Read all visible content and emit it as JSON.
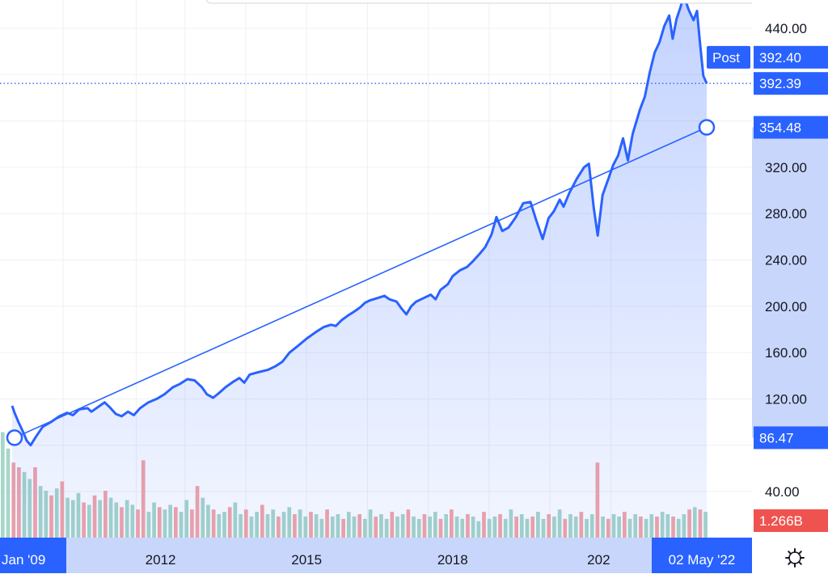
{
  "chart_data": {
    "type": "area",
    "y_axis": {
      "ticks": [
        40,
        120,
        160,
        200,
        240,
        280,
        320,
        440
      ],
      "tick_labels": [
        "40.00",
        "120.00",
        "160.00",
        "200.00",
        "240.00",
        "280.00",
        "320.00",
        "440.00"
      ],
      "ylim": [
        12,
        468
      ]
    },
    "x_axis": {
      "tick_labels": [
        "2012",
        "2015",
        "2018",
        "202"
      ],
      "start_label": "Jan '09",
      "end_label": "02 May '22"
    },
    "grid": true,
    "price_series": {
      "color": "#2962ff",
      "points": [
        [
          2008.95,
          114
        ],
        [
          2009.0,
          108
        ],
        [
          2009.08,
          100
        ],
        [
          2009.17,
          92
        ],
        [
          2009.25,
          84
        ],
        [
          2009.33,
          80
        ],
        [
          2009.45,
          88
        ],
        [
          2009.58,
          96
        ],
        [
          2009.75,
          100
        ],
        [
          2009.92,
          105
        ],
        [
          2010.08,
          108
        ],
        [
          2010.2,
          106
        ],
        [
          2010.33,
          111
        ],
        [
          2010.5,
          112
        ],
        [
          2010.58,
          109
        ],
        [
          2010.75,
          114
        ],
        [
          2010.85,
          117
        ],
        [
          2010.95,
          113
        ],
        [
          2011.08,
          107
        ],
        [
          2011.2,
          105
        ],
        [
          2011.33,
          109
        ],
        [
          2011.45,
          106
        ],
        [
          2011.58,
          112
        ],
        [
          2011.75,
          117
        ],
        [
          2011.92,
          120
        ],
        [
          2012.08,
          124
        ],
        [
          2012.25,
          130
        ],
        [
          2012.4,
          133
        ],
        [
          2012.55,
          137
        ],
        [
          2012.7,
          136
        ],
        [
          2012.85,
          130
        ],
        [
          2012.95,
          124
        ],
        [
          2013.08,
          121
        ],
        [
          2013.2,
          125
        ],
        [
          2013.33,
          130
        ],
        [
          2013.5,
          135
        ],
        [
          2013.62,
          138
        ],
        [
          2013.72,
          134
        ],
        [
          2013.83,
          141
        ],
        [
          2014.0,
          143
        ],
        [
          2014.2,
          145
        ],
        [
          2014.35,
          148
        ],
        [
          2014.5,
          152
        ],
        [
          2014.65,
          160
        ],
        [
          2014.8,
          165
        ],
        [
          2015.0,
          172
        ],
        [
          2015.2,
          178
        ],
        [
          2015.35,
          182
        ],
        [
          2015.5,
          184
        ],
        [
          2015.6,
          183
        ],
        [
          2015.72,
          188
        ],
        [
          2015.85,
          192
        ],
        [
          2016.0,
          196
        ],
        [
          2016.1,
          199
        ],
        [
          2016.2,
          203
        ],
        [
          2016.3,
          205
        ],
        [
          2016.45,
          207
        ],
        [
          2016.6,
          209
        ],
        [
          2016.7,
          206
        ],
        [
          2016.85,
          204
        ],
        [
          2016.95,
          198
        ],
        [
          2017.05,
          193
        ],
        [
          2017.15,
          200
        ],
        [
          2017.25,
          204
        ],
        [
          2017.4,
          207
        ],
        [
          2017.55,
          210
        ],
        [
          2017.65,
          206
        ],
        [
          2017.75,
          214
        ],
        [
          2017.9,
          219
        ],
        [
          2018.0,
          226
        ],
        [
          2018.15,
          231
        ],
        [
          2018.3,
          234
        ],
        [
          2018.42,
          239
        ],
        [
          2018.55,
          245
        ],
        [
          2018.67,
          251
        ],
        [
          2018.8,
          262
        ],
        [
          2018.9,
          277
        ],
        [
          2019.02,
          265
        ],
        [
          2019.15,
          268
        ],
        [
          2019.3,
          277
        ],
        [
          2019.45,
          289
        ],
        [
          2019.6,
          290
        ],
        [
          2019.72,
          274
        ],
        [
          2019.85,
          258
        ],
        [
          2019.97,
          276
        ],
        [
          2020.08,
          282
        ],
        [
          2020.2,
          292
        ],
        [
          2020.28,
          286
        ],
        [
          2020.4,
          298
        ],
        [
          2020.55,
          310
        ],
        [
          2020.7,
          320
        ],
        [
          2020.8,
          323
        ],
        [
          2020.9,
          285
        ],
        [
          2020.98,
          261
        ],
        [
          2021.08,
          296
        ],
        [
          2021.2,
          310
        ],
        [
          2021.3,
          322
        ],
        [
          2021.4,
          330
        ],
        [
          2021.5,
          345
        ],
        [
          2021.6,
          326
        ],
        [
          2021.7,
          349
        ],
        [
          2021.85,
          370
        ],
        [
          2021.95,
          381
        ],
        [
          2022.05,
          402
        ],
        [
          2022.15,
          419
        ],
        [
          2022.25,
          428
        ],
        [
          2022.35,
          442
        ],
        [
          2022.45,
          451
        ],
        [
          2022.52,
          431
        ],
        [
          2022.6,
          448
        ],
        [
          2022.68,
          458
        ],
        [
          2022.75,
          468
        ],
        [
          2022.85,
          456
        ],
        [
          2022.95,
          447
        ],
        [
          2023.02,
          455
        ],
        [
          2023.08,
          428
        ],
        [
          2023.15,
          399
        ],
        [
          2023.22,
          392.39
        ]
      ]
    },
    "trend_line": {
      "color": "#2962ff",
      "start": [
        2009.0,
        86.47
      ],
      "end": [
        2023.22,
        354.48
      ]
    },
    "price_labels": {
      "current": "392.39",
      "post_value": "392.40",
      "post_label": "Post",
      "trend_end": "354.48",
      "trend_start": "86.47",
      "volume": "1.266B"
    },
    "volume": {
      "up_color": "#a6d6c9",
      "down_color": "#f4a4a6",
      "bars": [
        [
          45,
          0
        ],
        [
          38,
          0
        ],
        [
          32,
          1
        ],
        [
          30,
          1
        ],
        [
          28,
          0
        ],
        [
          25,
          0
        ],
        [
          30,
          1
        ],
        [
          22,
          0
        ],
        [
          20,
          0
        ],
        [
          18,
          1
        ],
        [
          21,
          0
        ],
        [
          24,
          1
        ],
        [
          17,
          0
        ],
        [
          16,
          0
        ],
        [
          19,
          0
        ],
        [
          15,
          1
        ],
        [
          14,
          0
        ],
        [
          18,
          1
        ],
        [
          16,
          0
        ],
        [
          20,
          1
        ],
        [
          17,
          0
        ],
        [
          15,
          0
        ],
        [
          13,
          1
        ],
        [
          16,
          0
        ],
        [
          14,
          0
        ],
        [
          12,
          1
        ],
        [
          33,
          1
        ],
        [
          11,
          0
        ],
        [
          15,
          0
        ],
        [
          13,
          1
        ],
        [
          12,
          0
        ],
        [
          14,
          0
        ],
        [
          13,
          1
        ],
        [
          11,
          0
        ],
        [
          16,
          0
        ],
        [
          12,
          1
        ],
        [
          22,
          1
        ],
        [
          17,
          0
        ],
        [
          14,
          0
        ],
        [
          12,
          1
        ],
        [
          10,
          0
        ],
        [
          11,
          0
        ],
        [
          13,
          1
        ],
        [
          15,
          0
        ],
        [
          10,
          0
        ],
        [
          12,
          1
        ],
        [
          9,
          0
        ],
        [
          11,
          0
        ],
        [
          14,
          1
        ],
        [
          10,
          0
        ],
        [
          12,
          0
        ],
        [
          9,
          1
        ],
        [
          11,
          0
        ],
        [
          13,
          0
        ],
        [
          10,
          1
        ],
        [
          12,
          0
        ],
        [
          9,
          0
        ],
        [
          11,
          1
        ],
        [
          10,
          0
        ],
        [
          8,
          0
        ],
        [
          12,
          1
        ],
        [
          9,
          0
        ],
        [
          10,
          0
        ],
        [
          8,
          1
        ],
        [
          11,
          0
        ],
        [
          9,
          0
        ],
        [
          10,
          1
        ],
        [
          8,
          0
        ],
        [
          12,
          0
        ],
        [
          9,
          1
        ],
        [
          10,
          0
        ],
        [
          8,
          0
        ],
        [
          11,
          1
        ],
        [
          9,
          0
        ],
        [
          10,
          0
        ],
        [
          12,
          1
        ],
        [
          9,
          0
        ],
        [
          8,
          0
        ],
        [
          10,
          1
        ],
        [
          9,
          0
        ],
        [
          11,
          0
        ],
        [
          8,
          1
        ],
        [
          10,
          0
        ],
        [
          12,
          1
        ],
        [
          9,
          0
        ],
        [
          8,
          0
        ],
        [
          10,
          1
        ],
        [
          9,
          0
        ],
        [
          7,
          0
        ],
        [
          11,
          1
        ],
        [
          8,
          0
        ],
        [
          9,
          0
        ],
        [
          10,
          1
        ],
        [
          8,
          0
        ],
        [
          12,
          0
        ],
        [
          9,
          1
        ],
        [
          10,
          0
        ],
        [
          8,
          0
        ],
        [
          9,
          1
        ],
        [
          11,
          0
        ],
        [
          8,
          0
        ],
        [
          10,
          1
        ],
        [
          9,
          0
        ],
        [
          12,
          0
        ],
        [
          8,
          1
        ],
        [
          10,
          0
        ],
        [
          9,
          0
        ],
        [
          11,
          1
        ],
        [
          8,
          0
        ],
        [
          10,
          0
        ],
        [
          32,
          1
        ],
        [
          9,
          0
        ],
        [
          8,
          1
        ],
        [
          10,
          0
        ],
        [
          9,
          0
        ],
        [
          11,
          1
        ],
        [
          8,
          0
        ],
        [
          10,
          0
        ],
        [
          9,
          1
        ],
        [
          8,
          0
        ],
        [
          10,
          0
        ],
        [
          9,
          1
        ],
        [
          11,
          0
        ],
        [
          10,
          0
        ],
        [
          9,
          1
        ],
        [
          8,
          0
        ],
        [
          10,
          0
        ],
        [
          12,
          1
        ],
        [
          13,
          0
        ],
        [
          12,
          1
        ],
        [
          11,
          0
        ]
      ]
    }
  }
}
